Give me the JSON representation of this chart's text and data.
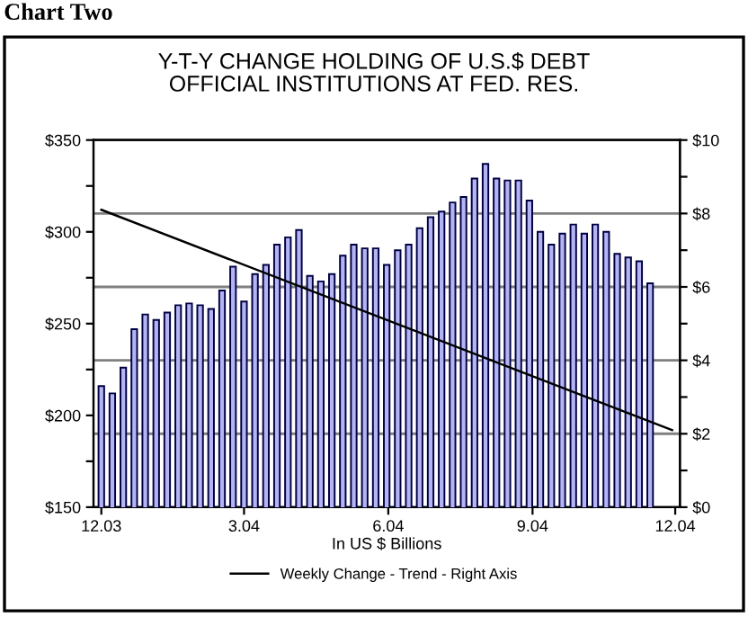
{
  "chart_data": {
    "type": "bar",
    "title": "Y-T-Y CHANGE HOLDING OF U.S.$ DEBT\nOFFICIAL INSTITUTIONS AT FED. RES.",
    "xlabel": "In US $ Billions",
    "annotations": [
      "Chart Two"
    ],
    "x": [
      "2003-12-01",
      "2003-12-08",
      "2003-12-15",
      "2003-12-22",
      "2003-12-29",
      "2004-01-05",
      "2004-01-12",
      "2004-01-19",
      "2004-01-26",
      "2004-02-02",
      "2004-02-09",
      "2004-02-16",
      "2004-02-23",
      "2004-03-01",
      "2004-03-08",
      "2004-03-15",
      "2004-03-22",
      "2004-03-29",
      "2004-04-05",
      "2004-04-12",
      "2004-04-19",
      "2004-04-26",
      "2004-05-03",
      "2004-05-10",
      "2004-05-17",
      "2004-05-24",
      "2004-05-31",
      "2004-06-07",
      "2004-06-14",
      "2004-06-21",
      "2004-06-28",
      "2004-07-05",
      "2004-07-12",
      "2004-07-19",
      "2004-07-26",
      "2004-08-02",
      "2004-08-09",
      "2004-08-16",
      "2004-08-23",
      "2004-08-30",
      "2004-09-06",
      "2004-09-13",
      "2004-09-20",
      "2004-09-27",
      "2004-10-04",
      "2004-10-11",
      "2004-10-18",
      "2004-10-25",
      "2004-11-01",
      "2004-11-08",
      "2004-11-15"
    ],
    "series": [
      {
        "color": "#b4b4f4",
        "values": [
          216,
          212,
          226,
          247,
          255,
          252,
          256,
          260,
          261,
          260,
          258,
          268,
          281,
          262,
          277,
          282,
          293,
          297,
          301,
          276,
          273,
          277,
          287,
          293,
          291,
          291,
          282,
          290,
          293,
          302,
          308,
          311,
          316,
          319,
          329,
          337,
          329,
          328,
          328,
          317,
          300,
          293,
          299,
          304,
          299,
          304,
          300,
          288,
          286,
          284,
          272
        ]
      },
      {
        "type": "line",
        "axis": "y2",
        "name": "Weekly Change - Trend - Right Axis",
        "color": "#000000",
        "x": [
          "2003-12-01",
          "2004-11-29"
        ],
        "values": [
          8.1,
          2.1
        ]
      }
    ],
    "xlim": [
      "2003-11-26",
      "2004-12-04"
    ],
    "xticks": [
      {
        "value": "2003-12-01",
        "label": "12.03"
      },
      {
        "value": "2004-03-01",
        "label": "3.04"
      },
      {
        "value": "2004-06-01",
        "label": "6.04"
      },
      {
        "value": "2004-09-01",
        "label": "9.04"
      },
      {
        "value": "2004-12-01",
        "label": "12.04"
      }
    ],
    "ylim": [
      150,
      350
    ],
    "yticks": [
      {
        "value": 150,
        "label": "$150"
      },
      {
        "value": 175,
        "label": null
      },
      {
        "value": 200,
        "label": "$200"
      },
      {
        "value": 225,
        "label": null
      },
      {
        "value": 250,
        "label": "$250"
      },
      {
        "value": 275,
        "label": null
      },
      {
        "value": 300,
        "label": "$300"
      },
      {
        "value": 325,
        "label": null
      },
      {
        "value": 350,
        "label": "$350"
      }
    ],
    "y2lim": [
      0,
      10
    ],
    "y2ticks": [
      {
        "value": 0,
        "label": "$0"
      },
      {
        "value": 1,
        "label": null
      },
      {
        "value": 2,
        "label": "$2"
      },
      {
        "value": 3,
        "label": null
      },
      {
        "value": 4,
        "label": "$4"
      },
      {
        "value": 5,
        "label": null
      },
      {
        "value": 6,
        "label": "$6"
      },
      {
        "value": 7,
        "label": null
      },
      {
        "value": 8,
        "label": "$8"
      },
      {
        "value": 9,
        "label": null
      },
      {
        "value": 10,
        "label": "$10"
      }
    ],
    "grid": "y2",
    "legend": "bottom"
  }
}
